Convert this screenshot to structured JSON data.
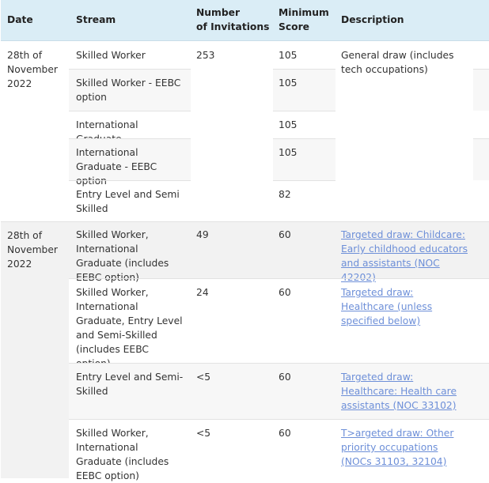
{
  "table": {
    "headers": [
      "Date",
      "Stream",
      "Number of Invitations",
      "Minimum Score",
      "Description"
    ],
    "header_lines": {
      "invitations": [
        "Number",
        "of Invitations"
      ],
      "score": [
        "Minimum",
        "Score"
      ]
    },
    "group1": {
      "date": "28th of November 2022",
      "invitations": "253",
      "description": "General draw (includes tech occupations)",
      "rows": [
        {
          "stream": "Skilled Worker",
          "score": "105"
        },
        {
          "stream": "Skilled Worker - EEBC option",
          "score": "105"
        },
        {
          "stream": "International Graduate",
          "score": "105"
        },
        {
          "stream": "International Graduate - EEBC option",
          "score": "105"
        },
        {
          "stream": "Entry Level and Semi Skilled",
          "score": "82"
        }
      ]
    },
    "group2": {
      "date": "28th of November 2022",
      "rows": [
        {
          "stream": "Skilled Worker, International Graduate (includes EEBC option)",
          "invitations": "49",
          "score": "60",
          "description": "Targeted draw: Childcare: Early childhood educators and assistants (NOC 42202)"
        },
        {
          "stream": "Skilled Worker, International Graduate, Entry Level and Semi-Skilled (includes EEBC option)",
          "invitations": "24",
          "score": "60",
          "description": "Targeted draw: Healthcare (unless specified below)"
        },
        {
          "stream": "Entry Level and Semi-Skilled",
          "invitations": "<5",
          "score": "60",
          "description": "Targeted draw: Healthcare: Health care assistants (NOC 33102)"
        },
        {
          "stream": "Skilled Worker, International Graduate (includes EEBC option)",
          "invitations": "<5",
          "score": "60",
          "description": "T>argeted draw: Other priority occupations (NOCs 31103, 32104)"
        }
      ]
    }
  },
  "colors": {
    "header_bg": "#daedf6",
    "link": "#6d8fd8",
    "stripe": "#f7f7f7"
  }
}
